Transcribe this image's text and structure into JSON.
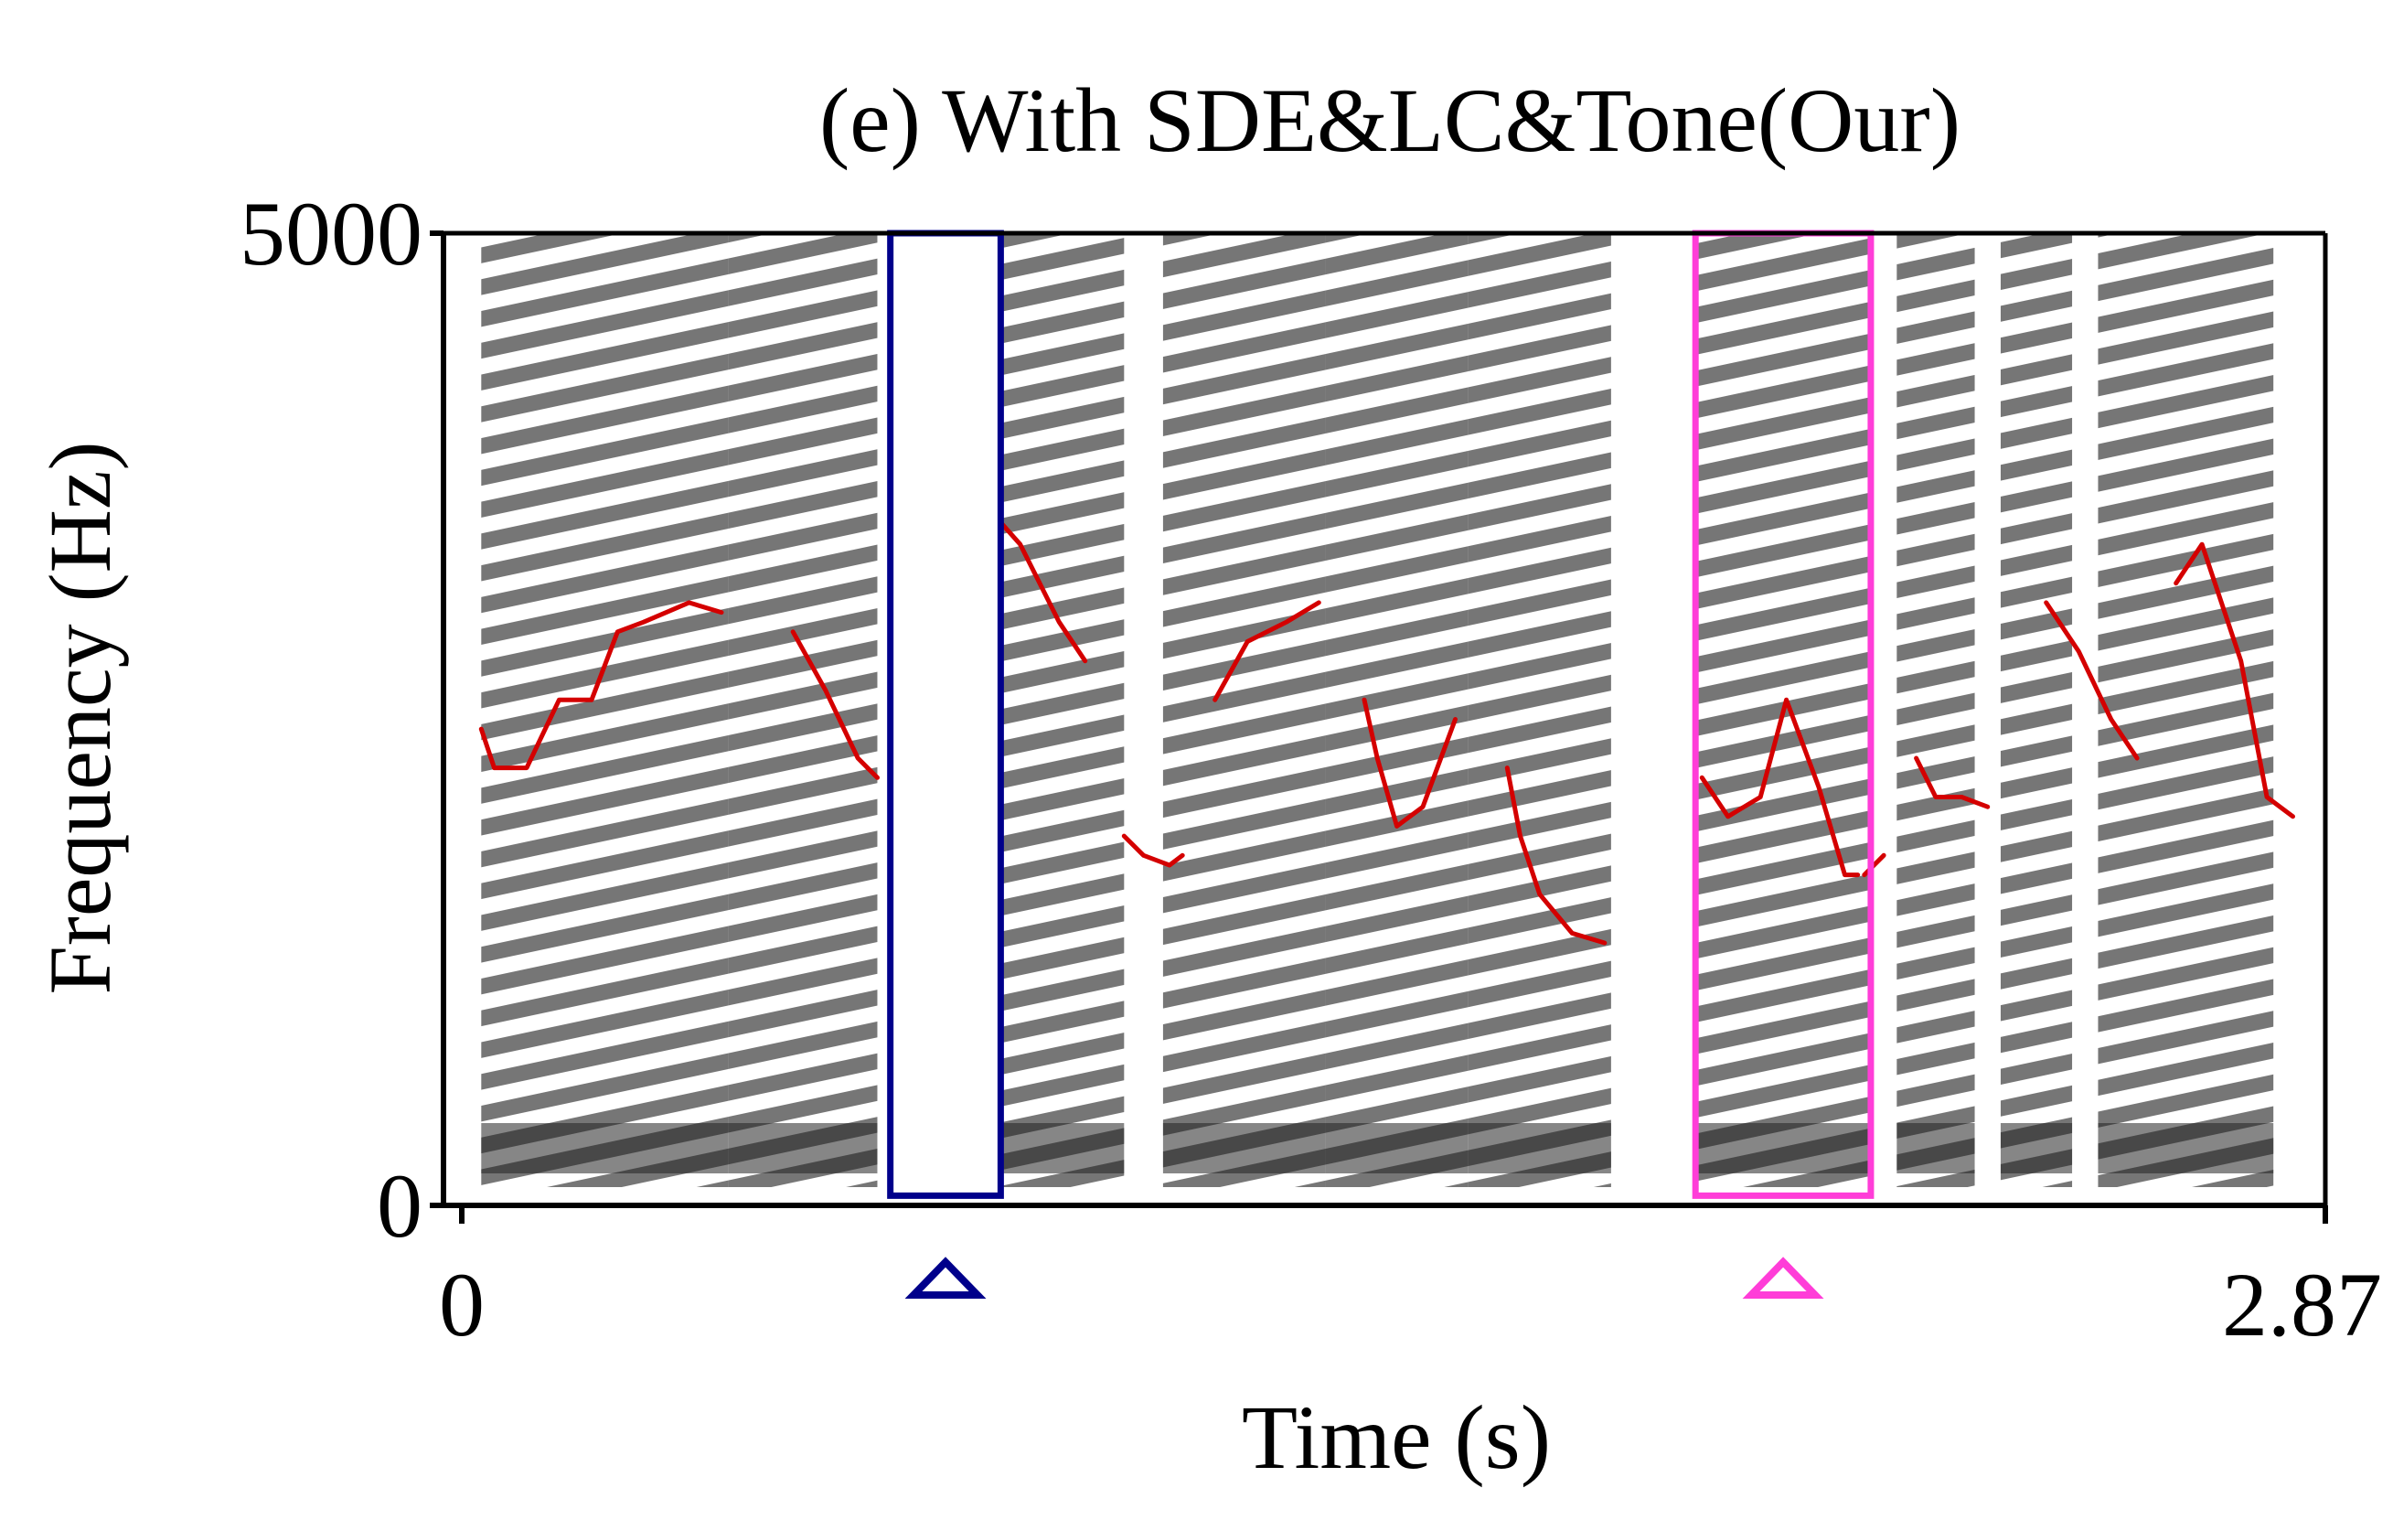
{
  "chart_data": {
    "type": "heatmap",
    "title": "(e) With SDE&LC&Tone(Our)",
    "xlabel": "Time (s)",
    "ylabel": "Frequency (Hz)",
    "xlim": [
      0,
      2.87
    ],
    "ylim": [
      0,
      5000
    ],
    "x_ticks": [
      {
        "value": 0,
        "label": "0"
      },
      {
        "value": 2.87,
        "label": "2.87"
      }
    ],
    "y_ticks": [
      {
        "value": 0,
        "label": "0"
      },
      {
        "value": 5000,
        "label": "5000"
      }
    ],
    "grid": false,
    "colors": {
      "spectrogram": "#000000",
      "pitch_contour": "#d40000",
      "box_navy": "#00008b",
      "box_magenta": "#ff3dd8"
    },
    "voiced_regions": [
      {
        "x0": 0.03,
        "x1": 0.41,
        "ymax": 5000
      },
      {
        "x0": 0.41,
        "x1": 0.64,
        "ymax": 5000
      },
      {
        "x0": 0.81,
        "x1": 1.02,
        "ymax": 5000
      },
      {
        "x0": 1.08,
        "x1": 1.33,
        "ymax": 5000
      },
      {
        "x0": 1.33,
        "x1": 1.55,
        "ymax": 5000
      },
      {
        "x0": 1.55,
        "x1": 1.77,
        "ymax": 5000
      },
      {
        "x0": 1.9,
        "x1": 2.17,
        "ymax": 5000
      },
      {
        "x0": 2.21,
        "x1": 2.33,
        "ymax": 5000
      },
      {
        "x0": 2.37,
        "x1": 2.48,
        "ymax": 5000
      },
      {
        "x0": 2.52,
        "x1": 2.79,
        "ymax": 5000
      }
    ],
    "pitch_contours": [
      {
        "x": [
          0.03,
          0.05,
          0.1,
          0.15,
          0.2,
          0.24,
          0.28,
          0.35,
          0.4
        ],
        "y": [
          2450,
          2250,
          2250,
          2600,
          2600,
          2950,
          3000,
          3100,
          3050
        ]
      },
      {
        "x": [
          0.51,
          0.56,
          0.61,
          0.64
        ],
        "y": [
          2950,
          2650,
          2300,
          2200
        ]
      },
      {
        "x": [
          0.82,
          0.86,
          0.92,
          0.96
        ],
        "y": [
          3550,
          3400,
          3000,
          2800
        ]
      },
      {
        "x": [
          1.02,
          1.05,
          1.09,
          1.11
        ],
        "y": [
          1900,
          1800,
          1750,
          1800
        ]
      },
      {
        "x": [
          1.16,
          1.21,
          1.27,
          1.32
        ],
        "y": [
          2600,
          2900,
          3000,
          3100
        ]
      },
      {
        "x": [
          1.39,
          1.41,
          1.44,
          1.48,
          1.53
        ],
        "y": [
          2600,
          2300,
          1950,
          2050,
          2500
        ]
      },
      {
        "x": [
          1.61,
          1.63,
          1.66,
          1.71,
          1.76
        ],
        "y": [
          2250,
          1900,
          1600,
          1400,
          1350
        ]
      },
      {
        "x": [
          1.91,
          1.95,
          2.0,
          2.04,
          2.09,
          2.13,
          2.15
        ],
        "y": [
          2200,
          2000,
          2100,
          2600,
          2150,
          1700,
          1700
        ]
      },
      {
        "x": [
          2.16,
          2.19
        ],
        "y": [
          1700,
          1800
        ]
      },
      {
        "x": [
          2.24,
          2.27,
          2.31,
          2.35
        ],
        "y": [
          2300,
          2100,
          2100,
          2050
        ]
      },
      {
        "x": [
          2.44,
          2.49,
          2.54,
          2.58
        ],
        "y": [
          3100,
          2850,
          2500,
          2300
        ]
      },
      {
        "x": [
          2.64,
          2.68,
          2.74,
          2.78,
          2.82
        ],
        "y": [
          3200,
          3400,
          2800,
          2100,
          2000
        ]
      }
    ],
    "highlight_boxes": [
      {
        "color": "navy",
        "x0": 0.66,
        "x1": 0.83,
        "y0": 50,
        "y1": 5000,
        "marker": "triangle"
      },
      {
        "color": "magenta",
        "x0": 1.9,
        "x1": 2.17,
        "y0": 50,
        "y1": 5000,
        "marker": "triangle"
      }
    ]
  }
}
